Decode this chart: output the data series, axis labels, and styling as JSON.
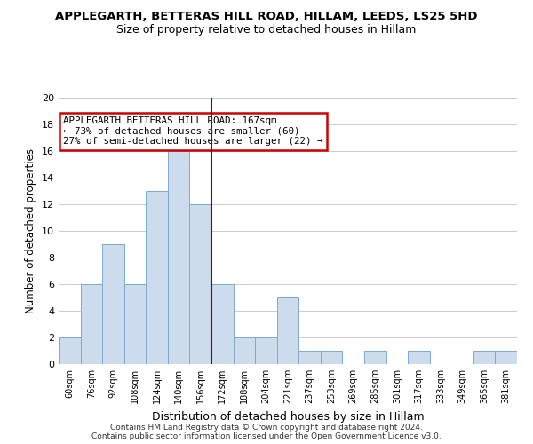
{
  "title": "APPLEGARTH, BETTERAS HILL ROAD, HILLAM, LEEDS, LS25 5HD",
  "subtitle": "Size of property relative to detached houses in Hillam",
  "xlabel": "Distribution of detached houses by size in Hillam",
  "ylabel": "Number of detached properties",
  "bar_color": "#ccdcec",
  "bar_edge_color": "#7eaacc",
  "bin_labels": [
    "60sqm",
    "76sqm",
    "92sqm",
    "108sqm",
    "124sqm",
    "140sqm",
    "156sqm",
    "172sqm",
    "188sqm",
    "204sqm",
    "221sqm",
    "237sqm",
    "253sqm",
    "269sqm",
    "285sqm",
    "301sqm",
    "317sqm",
    "333sqm",
    "349sqm",
    "365sqm",
    "381sqm"
  ],
  "counts": [
    2,
    6,
    9,
    6,
    13,
    16,
    12,
    6,
    2,
    2,
    5,
    1,
    1,
    0,
    1,
    0,
    1,
    0,
    0,
    1,
    1
  ],
  "vline_color": "#8b0000",
  "annotation_line1": "APPLEGARTH BETTERAS HILL ROAD: 167sqm",
  "annotation_line2": "← 73% of detached houses are smaller (60)",
  "annotation_line3": "27% of semi-detached houses are larger (22) →",
  "annotation_box_color": "#ffffff",
  "annotation_box_edge": "#cc0000",
  "ylim": [
    0,
    20
  ],
  "yticks": [
    0,
    2,
    4,
    6,
    8,
    10,
    12,
    14,
    16,
    18,
    20
  ],
  "footer1": "Contains HM Land Registry data © Crown copyright and database right 2024.",
  "footer2": "Contains public sector information licensed under the Open Government Licence v3.0.",
  "grid_color": "#cccccc",
  "background_color": "#ffffff",
  "title_fontsize": 9.5,
  "subtitle_fontsize": 9
}
